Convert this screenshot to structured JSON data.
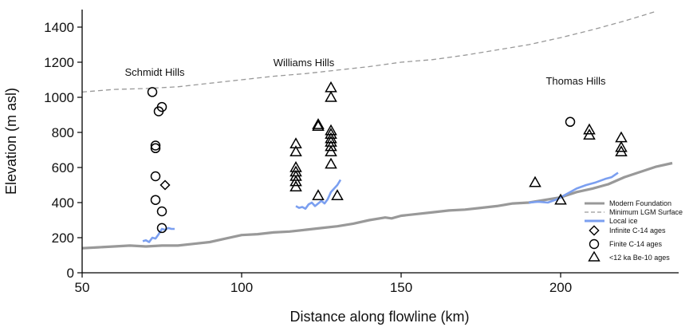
{
  "chart_data": {
    "type": "scatter",
    "title": "",
    "xlabel": "Distance along flowline (km)",
    "ylabel": "Elevation (m asl)",
    "xlim": [
      50,
      237
    ],
    "ylim": [
      0,
      1500
    ],
    "xticks": [
      50,
      100,
      150,
      200
    ],
    "yticks": [
      0,
      200,
      400,
      600,
      800,
      1000,
      1200,
      1400
    ],
    "grid": false,
    "legend_position": "bottom-right",
    "colors": {
      "modern_foundation": "#999999",
      "minimum_lgm_surface": "#999999",
      "local_ice": "#7b9ff0",
      "markers": "#000000"
    },
    "annotations": [
      {
        "text": "Schmidt Hills",
        "x": 75,
        "y": 1150
      },
      {
        "text": "Williams Hills",
        "x": 122,
        "y": 1200
      },
      {
        "text": "Thomas Hills",
        "x": 209,
        "y": 1090
      }
    ],
    "series": [
      {
        "name": "Modern Foundation",
        "kind": "line",
        "x": [
          50,
          55,
          60,
          65,
          70,
          75,
          80,
          85,
          90,
          95,
          100,
          105,
          110,
          115,
          120,
          125,
          130,
          135,
          140,
          145,
          147,
          150,
          155,
          160,
          165,
          170,
          175,
          180,
          185,
          190,
          195,
          200,
          205,
          210,
          215,
          220,
          225,
          230,
          235
        ],
        "y": [
          140,
          145,
          150,
          155,
          150,
          155,
          155,
          165,
          175,
          195,
          215,
          220,
          230,
          235,
          245,
          255,
          265,
          280,
          300,
          315,
          310,
          325,
          335,
          345,
          355,
          360,
          370,
          380,
          395,
          400,
          415,
          430,
          460,
          480,
          505,
          545,
          575,
          605,
          625
        ]
      },
      {
        "name": "Minimum LGM Surface",
        "kind": "line",
        "x": [
          50,
          60,
          70,
          80,
          90,
          100,
          110,
          120,
          130,
          140,
          150,
          160,
          170,
          180,
          190,
          200,
          210,
          220,
          230
        ],
        "y": [
          1030,
          1045,
          1050,
          1060,
          1080,
          1100,
          1120,
          1135,
          1155,
          1175,
          1200,
          1215,
          1240,
          1270,
          1300,
          1340,
          1385,
          1435,
          1490
        ]
      },
      {
        "name": "Local ice",
        "kind": "line",
        "segments": [
          {
            "x": [
              69,
              70,
              71,
              72,
              73,
              74,
              75,
              76,
              77,
              78,
              79
            ],
            "y": [
              180,
              185,
              175,
              200,
              195,
              220,
              250,
              245,
              255,
              250,
              250
            ]
          },
          {
            "x": [
              117,
              118,
              119,
              120,
              121,
              122,
              123,
              124,
              125,
              126,
              127,
              128,
              129,
              130,
              131
            ],
            "y": [
              380,
              370,
              375,
              365,
              390,
              400,
              380,
              395,
              410,
              395,
              420,
              460,
              480,
              500,
              530
            ]
          },
          {
            "x": [
              190,
              193,
              196,
              199,
              202,
              205,
              208,
              211,
              214,
              216,
              218
            ],
            "y": [
              400,
              405,
              400,
              420,
              450,
              480,
              500,
              515,
              535,
              545,
              570
            ]
          }
        ]
      },
      {
        "name": "Infinite C-14 ages",
        "kind": "marker",
        "marker": "diamond",
        "points": [
          {
            "x": 76,
            "y": 500
          }
        ]
      },
      {
        "name": "Finite C-14 ages",
        "kind": "marker",
        "marker": "circle",
        "points": [
          {
            "x": 72,
            "y": 1030
          },
          {
            "x": 75,
            "y": 945
          },
          {
            "x": 74,
            "y": 920
          },
          {
            "x": 73,
            "y": 725
          },
          {
            "x": 73,
            "y": 710
          },
          {
            "x": 73,
            "y": 550
          },
          {
            "x": 73,
            "y": 415
          },
          {
            "x": 75,
            "y": 350
          },
          {
            "x": 75,
            "y": 255
          },
          {
            "x": 203,
            "y": 860
          }
        ]
      },
      {
        "name": "<12 ka Be-10 ages",
        "kind": "marker",
        "marker": "triangle",
        "points": [
          {
            "x": 117,
            "y": 735
          },
          {
            "x": 117,
            "y": 690
          },
          {
            "x": 117,
            "y": 600
          },
          {
            "x": 117,
            "y": 575
          },
          {
            "x": 117,
            "y": 550
          },
          {
            "x": 117,
            "y": 520
          },
          {
            "x": 117,
            "y": 490
          },
          {
            "x": 124,
            "y": 845
          },
          {
            "x": 124,
            "y": 835
          },
          {
            "x": 124,
            "y": 440
          },
          {
            "x": 128,
            "y": 1055
          },
          {
            "x": 128,
            "y": 1000
          },
          {
            "x": 128,
            "y": 810
          },
          {
            "x": 128,
            "y": 790
          },
          {
            "x": 128,
            "y": 765
          },
          {
            "x": 128,
            "y": 745
          },
          {
            "x": 128,
            "y": 720
          },
          {
            "x": 128,
            "y": 690
          },
          {
            "x": 128,
            "y": 620
          },
          {
            "x": 130,
            "y": 440
          },
          {
            "x": 192,
            "y": 515
          },
          {
            "x": 200,
            "y": 415
          },
          {
            "x": 209,
            "y": 815
          },
          {
            "x": 209,
            "y": 785
          },
          {
            "x": 219,
            "y": 770
          },
          {
            "x": 219,
            "y": 715
          },
          {
            "x": 219,
            "y": 690
          }
        ]
      }
    ]
  }
}
